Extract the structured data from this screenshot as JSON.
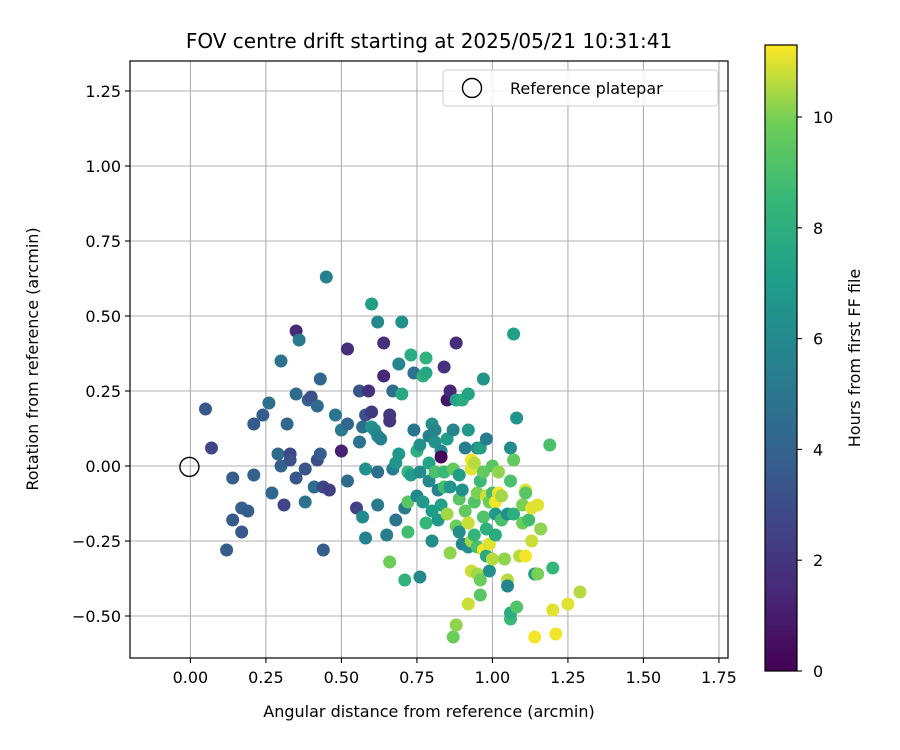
{
  "chart_data": {
    "type": "scatter",
    "title": "FOV centre drift starting at 2025/05/21 10:31:41",
    "xlabel": "Angular distance from reference (arcmin)",
    "ylabel": "Rotation from reference (arcmin)",
    "xlim": [
      -0.2,
      1.78
    ],
    "ylim": [
      -0.64,
      1.35
    ],
    "x_ticks": [
      0.0,
      0.25,
      0.5,
      0.75,
      1.0,
      1.25,
      1.5,
      1.75
    ],
    "x_tick_labels": [
      "0.00",
      "0.25",
      "0.50",
      "0.75",
      "1.00",
      "1.25",
      "1.50",
      "1.75"
    ],
    "y_ticks": [
      -0.5,
      -0.25,
      0.0,
      0.25,
      0.5,
      0.75,
      1.0,
      1.25
    ],
    "y_tick_labels": [
      "−0.50",
      "−0.25",
      "0.00",
      "0.25",
      "0.50",
      "0.75",
      "1.00",
      "1.25"
    ],
    "grid": true,
    "colormap": "viridis",
    "colorbar": {
      "label": "Hours from first FF file",
      "range": [
        0,
        11.3
      ],
      "ticks": [
        0,
        2,
        4,
        6,
        8,
        10
      ],
      "tick_labels": [
        "0",
        "2",
        "4",
        "6",
        "8",
        "10"
      ]
    },
    "legend": {
      "placement": "top-right",
      "entries": [
        {
          "label": "Reference platepar",
          "marker": "open-circle",
          "color": "#000000"
        }
      ]
    },
    "reference_point": {
      "x": 0.0,
      "y": 0.0
    },
    "points": [
      {
        "x": 0.05,
        "y": 0.19,
        "h": 3.5
      },
      {
        "x": 0.07,
        "y": 0.06,
        "h": 2.8
      },
      {
        "x": 0.14,
        "y": -0.04,
        "h": 3.8
      },
      {
        "x": 0.14,
        "y": -0.18,
        "h": 3.6
      },
      {
        "x": 0.12,
        "y": -0.28,
        "h": 3.7
      },
      {
        "x": 0.17,
        "y": -0.14,
        "h": 3.9
      },
      {
        "x": 0.17,
        "y": -0.22,
        "h": 3.6
      },
      {
        "x": 0.19,
        "y": -0.15,
        "h": 3.8
      },
      {
        "x": 0.21,
        "y": -0.03,
        "h": 4.0
      },
      {
        "x": 0.21,
        "y": 0.14,
        "h": 3.6
      },
      {
        "x": 0.24,
        "y": 0.17,
        "h": 3.8
      },
      {
        "x": 0.26,
        "y": 0.21,
        "h": 4.6
      },
      {
        "x": 0.27,
        "y": -0.09,
        "h": 4.2
      },
      {
        "x": 0.29,
        "y": 0.04,
        "h": 4.4
      },
      {
        "x": 0.3,
        "y": 0.0,
        "h": 4.0
      },
      {
        "x": 0.3,
        "y": 0.35,
        "h": 4.8
      },
      {
        "x": 0.31,
        "y": -0.13,
        "h": 2.6
      },
      {
        "x": 0.32,
        "y": 0.14,
        "h": 4.2
      },
      {
        "x": 0.33,
        "y": 0.04,
        "h": 2.8
      },
      {
        "x": 0.33,
        "y": 0.02,
        "h": 3.2
      },
      {
        "x": 0.35,
        "y": -0.04,
        "h": 3.4
      },
      {
        "x": 0.35,
        "y": 0.45,
        "h": 1.5
      },
      {
        "x": 0.36,
        "y": 0.42,
        "h": 5.2
      },
      {
        "x": 0.35,
        "y": 0.24,
        "h": 4.4
      },
      {
        "x": 0.38,
        "y": -0.01,
        "h": 3.4
      },
      {
        "x": 0.38,
        "y": -0.12,
        "h": 4.8
      },
      {
        "x": 0.39,
        "y": 0.22,
        "h": 4.0
      },
      {
        "x": 0.4,
        "y": 0.23,
        "h": 3.2
      },
      {
        "x": 0.41,
        "y": -0.07,
        "h": 4.6
      },
      {
        "x": 0.42,
        "y": 0.02,
        "h": 3.0
      },
      {
        "x": 0.43,
        "y": 0.04,
        "h": 3.8
      },
      {
        "x": 0.42,
        "y": 0.2,
        "h": 4.4
      },
      {
        "x": 0.43,
        "y": 0.29,
        "h": 4.2
      },
      {
        "x": 0.44,
        "y": -0.07,
        "h": 2.8
      },
      {
        "x": 0.44,
        "y": -0.28,
        "h": 3.8
      },
      {
        "x": 0.45,
        "y": 0.63,
        "h": 5.6
      },
      {
        "x": 0.46,
        "y": -0.08,
        "h": 2.4
      },
      {
        "x": 0.48,
        "y": 0.17,
        "h": 5.0
      },
      {
        "x": 0.5,
        "y": 0.12,
        "h": 5.2
      },
      {
        "x": 0.5,
        "y": 0.05,
        "h": 1.2
      },
      {
        "x": 0.52,
        "y": 0.39,
        "h": 1.6
      },
      {
        "x": 0.52,
        "y": 0.14,
        "h": 4.2
      },
      {
        "x": 0.52,
        "y": -0.05,
        "h": 4.4
      },
      {
        "x": 0.55,
        "y": -0.14,
        "h": 2.6
      },
      {
        "x": 0.56,
        "y": 0.25,
        "h": 3.4
      },
      {
        "x": 0.56,
        "y": 0.08,
        "h": 4.8
      },
      {
        "x": 0.57,
        "y": 0.13,
        "h": 4.6
      },
      {
        "x": 0.57,
        "y": -0.17,
        "h": 6.0
      },
      {
        "x": 0.58,
        "y": -0.24,
        "h": 5.6
      },
      {
        "x": 0.58,
        "y": -0.01,
        "h": 6.4
      },
      {
        "x": 0.58,
        "y": 0.17,
        "h": 3.2
      },
      {
        "x": 0.59,
        "y": 0.25,
        "h": 1.8
      },
      {
        "x": 0.6,
        "y": 0.54,
        "h": 7.2
      },
      {
        "x": 0.6,
        "y": 0.18,
        "h": 2.2
      },
      {
        "x": 0.6,
        "y": 0.13,
        "h": 6.6
      },
      {
        "x": 0.61,
        "y": 0.12,
        "h": 6.2
      },
      {
        "x": 0.62,
        "y": 0.1,
        "h": 5.8
      },
      {
        "x": 0.62,
        "y": -0.02,
        "h": 4.6
      },
      {
        "x": 0.62,
        "y": -0.13,
        "h": 5.2
      },
      {
        "x": 0.62,
        "y": 0.48,
        "h": 6.0
      },
      {
        "x": 0.63,
        "y": 0.09,
        "h": 5.6
      },
      {
        "x": 0.64,
        "y": 0.41,
        "h": 1.8
      },
      {
        "x": 0.64,
        "y": 0.3,
        "h": 1.4
      },
      {
        "x": 0.65,
        "y": -0.23,
        "h": 5.4
      },
      {
        "x": 0.66,
        "y": -0.32,
        "h": 9.8
      },
      {
        "x": 0.66,
        "y": 0.17,
        "h": 2.2
      },
      {
        "x": 0.66,
        "y": 0.15,
        "h": 2.0
      },
      {
        "x": 0.67,
        "y": -0.01,
        "h": 5.4
      },
      {
        "x": 0.67,
        "y": 0.25,
        "h": 4.6
      },
      {
        "x": 0.68,
        "y": -0.18,
        "h": 5.0
      },
      {
        "x": 0.68,
        "y": 0.01,
        "h": 6.6
      },
      {
        "x": 0.69,
        "y": 0.04,
        "h": 6.8
      },
      {
        "x": 0.69,
        "y": 0.34,
        "h": 5.8
      },
      {
        "x": 0.7,
        "y": 0.48,
        "h": 6.4
      },
      {
        "x": 0.7,
        "y": 0.24,
        "h": 7.6
      },
      {
        "x": 0.71,
        "y": -0.14,
        "h": 5.2
      },
      {
        "x": 0.71,
        "y": -0.38,
        "h": 8.2
      },
      {
        "x": 0.72,
        "y": -0.12,
        "h": 9.4
      },
      {
        "x": 0.72,
        "y": -0.22,
        "h": 8.8
      },
      {
        "x": 0.72,
        "y": -0.02,
        "h": 8.4
      },
      {
        "x": 0.73,
        "y": 0.37,
        "h": 7.8
      },
      {
        "x": 0.73,
        "y": -0.03,
        "h": 7.0
      },
      {
        "x": 0.74,
        "y": 0.12,
        "h": 5.0
      },
      {
        "x": 0.74,
        "y": 0.31,
        "h": 4.8
      },
      {
        "x": 0.75,
        "y": -0.1,
        "h": 6.0
      },
      {
        "x": 0.75,
        "y": 0.05,
        "h": 8.0
      },
      {
        "x": 0.76,
        "y": -0.37,
        "h": 6.0
      },
      {
        "x": 0.76,
        "y": -0.02,
        "h": 6.2
      },
      {
        "x": 0.76,
        "y": 0.07,
        "h": 6.4
      },
      {
        "x": 0.77,
        "y": 0.3,
        "h": 8.0
      },
      {
        "x": 0.77,
        "y": -0.12,
        "h": 6.8
      },
      {
        "x": 0.78,
        "y": 0.36,
        "h": 8.2
      },
      {
        "x": 0.78,
        "y": -0.19,
        "h": 8.4
      },
      {
        "x": 0.78,
        "y": 0.31,
        "h": 7.6
      },
      {
        "x": 0.79,
        "y": 0.1,
        "h": 5.6
      },
      {
        "x": 0.79,
        "y": 0.01,
        "h": 7.4
      },
      {
        "x": 0.79,
        "y": -0.05,
        "h": 6.0
      },
      {
        "x": 0.8,
        "y": -0.25,
        "h": 6.2
      },
      {
        "x": 0.8,
        "y": 0.14,
        "h": 6.4
      },
      {
        "x": 0.8,
        "y": -0.15,
        "h": 7.0
      },
      {
        "x": 0.81,
        "y": -0.02,
        "h": 9.0
      },
      {
        "x": 0.81,
        "y": 0.08,
        "h": 6.4
      },
      {
        "x": 0.81,
        "y": 0.12,
        "h": 5.8
      },
      {
        "x": 0.82,
        "y": -0.08,
        "h": 5.6
      },
      {
        "x": 0.82,
        "y": -0.18,
        "h": 6.8
      },
      {
        "x": 0.83,
        "y": -0.13,
        "h": 7.2
      },
      {
        "x": 0.83,
        "y": 0.05,
        "h": 6.0
      },
      {
        "x": 0.83,
        "y": 0.03,
        "h": 0.2
      },
      {
        "x": 0.84,
        "y": 0.33,
        "h": 1.8
      },
      {
        "x": 0.84,
        "y": -0.02,
        "h": 8.6
      },
      {
        "x": 0.84,
        "y": -0.07,
        "h": 8.8
      },
      {
        "x": 0.85,
        "y": 0.09,
        "h": 7.0
      },
      {
        "x": 0.85,
        "y": 0.22,
        "h": 0.8
      },
      {
        "x": 0.85,
        "y": -0.16,
        "h": 10.4
      },
      {
        "x": 0.86,
        "y": 0.25,
        "h": 1.4
      },
      {
        "x": 0.86,
        "y": -0.29,
        "h": 10.2
      },
      {
        "x": 0.86,
        "y": -0.07,
        "h": 6.6
      },
      {
        "x": 0.87,
        "y": -0.57,
        "h": 9.8
      },
      {
        "x": 0.87,
        "y": 0.12,
        "h": 5.8
      },
      {
        "x": 0.87,
        "y": -0.01,
        "h": 9.6
      },
      {
        "x": 0.88,
        "y": 0.41,
        "h": 1.6
      },
      {
        "x": 0.88,
        "y": -0.2,
        "h": 9.8
      },
      {
        "x": 0.88,
        "y": -0.53,
        "h": 10.2
      },
      {
        "x": 0.88,
        "y": 0.22,
        "h": 7.4
      },
      {
        "x": 0.89,
        "y": -0.11,
        "h": 9.4
      },
      {
        "x": 0.89,
        "y": -0.03,
        "h": 7.2
      },
      {
        "x": 0.89,
        "y": -0.22,
        "h": 6.2
      },
      {
        "x": 0.9,
        "y": -0.26,
        "h": 5.8
      },
      {
        "x": 0.9,
        "y": 0.22,
        "h": 7.8
      },
      {
        "x": 0.9,
        "y": -0.08,
        "h": 6.4
      },
      {
        "x": 0.91,
        "y": -0.15,
        "h": 9.6
      },
      {
        "x": 0.91,
        "y": 0.06,
        "h": 5.4
      },
      {
        "x": 0.92,
        "y": -0.46,
        "h": 10.8
      },
      {
        "x": 0.92,
        "y": 0.24,
        "h": 7.4
      },
      {
        "x": 0.92,
        "y": -0.27,
        "h": 6.2
      },
      {
        "x": 0.92,
        "y": -0.19,
        "h": 10.8
      },
      {
        "x": 0.92,
        "y": 0.12,
        "h": 6.8
      },
      {
        "x": 0.93,
        "y": -0.01,
        "h": 11.0
      },
      {
        "x": 0.93,
        "y": -0.25,
        "h": 10.4
      },
      {
        "x": 0.93,
        "y": 0.02,
        "h": 11.2
      },
      {
        "x": 0.93,
        "y": -0.35,
        "h": 10.8
      },
      {
        "x": 0.94,
        "y": -0.12,
        "h": 9.2
      },
      {
        "x": 0.94,
        "y": -0.23,
        "h": 8.4
      },
      {
        "x": 0.94,
        "y": 0.01,
        "h": 10.6
      },
      {
        "x": 0.95,
        "y": -0.36,
        "h": 10.4
      },
      {
        "x": 0.95,
        "y": -0.27,
        "h": 9.0
      },
      {
        "x": 0.95,
        "y": 0.06,
        "h": 6.2
      },
      {
        "x": 0.95,
        "y": -0.09,
        "h": 10.0
      },
      {
        "x": 0.96,
        "y": -0.43,
        "h": 9.4
      },
      {
        "x": 0.96,
        "y": -0.05,
        "h": 8.6
      },
      {
        "x": 0.96,
        "y": -0.38,
        "h": 9.8
      },
      {
        "x": 0.96,
        "y": 0.06,
        "h": 7.2
      },
      {
        "x": 0.97,
        "y": -0.17,
        "h": 9.2
      },
      {
        "x": 0.97,
        "y": 0.29,
        "h": 6.6
      },
      {
        "x": 0.97,
        "y": -0.02,
        "h": 9.6
      },
      {
        "x": 0.97,
        "y": -0.28,
        "h": 11.2
      },
      {
        "x": 0.98,
        "y": -0.21,
        "h": 8.0
      },
      {
        "x": 0.98,
        "y": -0.1,
        "h": 10.8
      },
      {
        "x": 0.98,
        "y": -0.3,
        "h": 7.6
      },
      {
        "x": 0.98,
        "y": 0.09,
        "h": 5.4
      },
      {
        "x": 0.99,
        "y": -0.35,
        "h": 6.4
      },
      {
        "x": 0.99,
        "y": -0.26,
        "h": 11.0
      },
      {
        "x": 0.99,
        "y": -0.12,
        "h": 9.8
      },
      {
        "x": 1.0,
        "y": -0.09,
        "h": 8.8
      },
      {
        "x": 1.0,
        "y": 0.0,
        "h": 9.4
      },
      {
        "x": 1.0,
        "y": -0.31,
        "h": 10.6
      },
      {
        "x": 1.01,
        "y": -0.12,
        "h": 11.2
      },
      {
        "x": 1.01,
        "y": -0.23,
        "h": 7.8
      },
      {
        "x": 1.01,
        "y": -0.16,
        "h": 6.8
      },
      {
        "x": 1.02,
        "y": -0.09,
        "h": 11.2
      },
      {
        "x": 1.02,
        "y": -0.02,
        "h": 10.2
      },
      {
        "x": 1.03,
        "y": -0.18,
        "h": 9.0
      },
      {
        "x": 1.03,
        "y": -0.1,
        "h": 10.4
      },
      {
        "x": 1.04,
        "y": -0.31,
        "h": 10.2
      },
      {
        "x": 1.05,
        "y": -0.38,
        "h": 10.6
      },
      {
        "x": 1.05,
        "y": -0.16,
        "h": 6.4
      },
      {
        "x": 1.05,
        "y": -0.4,
        "h": 5.8
      },
      {
        "x": 1.06,
        "y": -0.51,
        "h": 8.6
      },
      {
        "x": 1.06,
        "y": -0.49,
        "h": 7.8
      },
      {
        "x": 1.06,
        "y": 0.06,
        "h": 6.2
      },
      {
        "x": 1.06,
        "y": -0.05,
        "h": 9.0
      },
      {
        "x": 1.07,
        "y": 0.44,
        "h": 7.2
      },
      {
        "x": 1.07,
        "y": -0.16,
        "h": 8.0
      },
      {
        "x": 1.07,
        "y": 0.02,
        "h": 9.6
      },
      {
        "x": 1.08,
        "y": -0.47,
        "h": 9.2
      },
      {
        "x": 1.08,
        "y": 0.16,
        "h": 6.6
      },
      {
        "x": 1.09,
        "y": -0.3,
        "h": 10.6
      },
      {
        "x": 1.1,
        "y": -0.13,
        "h": 10.0
      },
      {
        "x": 1.1,
        "y": -0.19,
        "h": 9.8
      },
      {
        "x": 1.11,
        "y": -0.08,
        "h": 11.0
      },
      {
        "x": 1.11,
        "y": -0.3,
        "h": 11.2
      },
      {
        "x": 1.11,
        "y": -0.09,
        "h": 9.4
      },
      {
        "x": 1.12,
        "y": -0.18,
        "h": 8.8
      },
      {
        "x": 1.13,
        "y": -0.14,
        "h": 11.0
      },
      {
        "x": 1.13,
        "y": -0.25,
        "h": 10.8
      },
      {
        "x": 1.14,
        "y": -0.36,
        "h": 6.8
      },
      {
        "x": 1.14,
        "y": -0.57,
        "h": 11.2
      },
      {
        "x": 1.15,
        "y": -0.36,
        "h": 10.0
      },
      {
        "x": 1.15,
        "y": -0.13,
        "h": 11.0
      },
      {
        "x": 1.16,
        "y": -0.21,
        "h": 10.2
      },
      {
        "x": 1.19,
        "y": 0.07,
        "h": 9.0
      },
      {
        "x": 1.2,
        "y": -0.34,
        "h": 8.4
      },
      {
        "x": 1.2,
        "y": -0.48,
        "h": 11.0
      },
      {
        "x": 1.21,
        "y": -0.56,
        "h": 11.2
      },
      {
        "x": 1.25,
        "y": -0.46,
        "h": 11.0
      },
      {
        "x": 1.29,
        "y": -0.42,
        "h": 10.6
      }
    ]
  }
}
